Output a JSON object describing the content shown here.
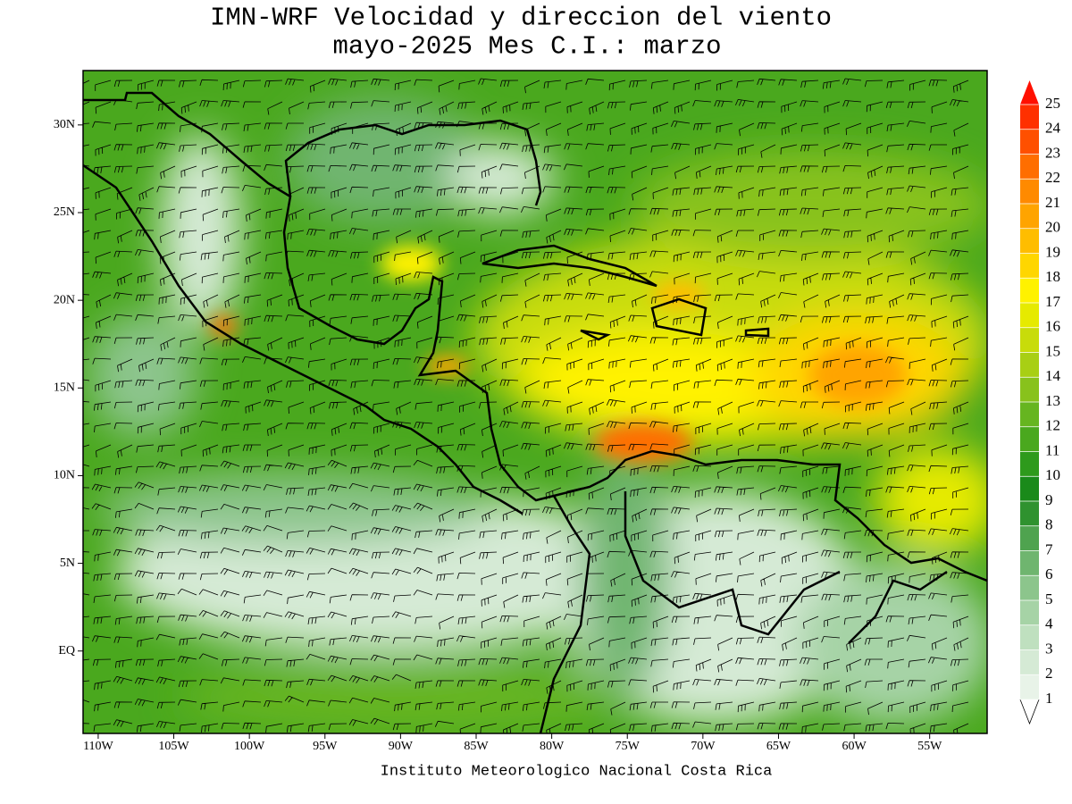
{
  "header": {
    "title": "IMN-WRF Velocidad y direccion del viento",
    "subtitle": "mayo-2025 Mes C.I.: marzo"
  },
  "map": {
    "lon_range": [
      -111,
      -51.2
    ],
    "lat_range": [
      -4.7,
      33.1
    ],
    "lon_ticks": [
      {
        "value": -110,
        "label": "110W"
      },
      {
        "value": -105,
        "label": "105W"
      },
      {
        "value": -100,
        "label": "100W"
      },
      {
        "value": -95,
        "label": "95W"
      },
      {
        "value": -90,
        "label": "90W"
      },
      {
        "value": -85,
        "label": "85W"
      },
      {
        "value": -80,
        "label": "80W"
      },
      {
        "value": -75,
        "label": "75W"
      },
      {
        "value": -70,
        "label": "70W"
      },
      {
        "value": -65,
        "label": "65W"
      },
      {
        "value": -60,
        "label": "60W"
      },
      {
        "value": -55,
        "label": "55W"
      }
    ],
    "lat_ticks": [
      {
        "value": 30,
        "label": "30N"
      },
      {
        "value": 25,
        "label": "25N"
      },
      {
        "value": 20,
        "label": "20N"
      },
      {
        "value": 15,
        "label": "15N"
      },
      {
        "value": 10,
        "label": "10N"
      },
      {
        "value": 5,
        "label": "5N"
      },
      {
        "value": 0,
        "label": "EQ"
      }
    ]
  },
  "colorbar": {
    "levels": [
      1,
      2,
      3,
      4,
      5,
      6,
      7,
      8,
      9,
      10,
      11,
      12,
      13,
      14,
      15,
      16,
      17,
      18,
      19,
      20,
      21,
      22,
      23,
      24,
      25
    ],
    "colors": [
      "#e8f3e8",
      "#d5ead5",
      "#bfe0bf",
      "#a6d3a6",
      "#8cc58c",
      "#6fb56f",
      "#4fa34f",
      "#2f922f",
      "#1a8a1a",
      "#2e9a1c",
      "#4aa81e",
      "#66b520",
      "#88c21c",
      "#a8cf14",
      "#c8dc0a",
      "#e6ea00",
      "#fff200",
      "#ffd600",
      "#ffbd00",
      "#ffa400",
      "#ff8a00",
      "#ff6e00",
      "#ff5000",
      "#ff3000"
    ],
    "over_color": "#ff1000"
  },
  "footer": {
    "credit": "Instituto Meteorologico Nacional Costa Rica"
  }
}
